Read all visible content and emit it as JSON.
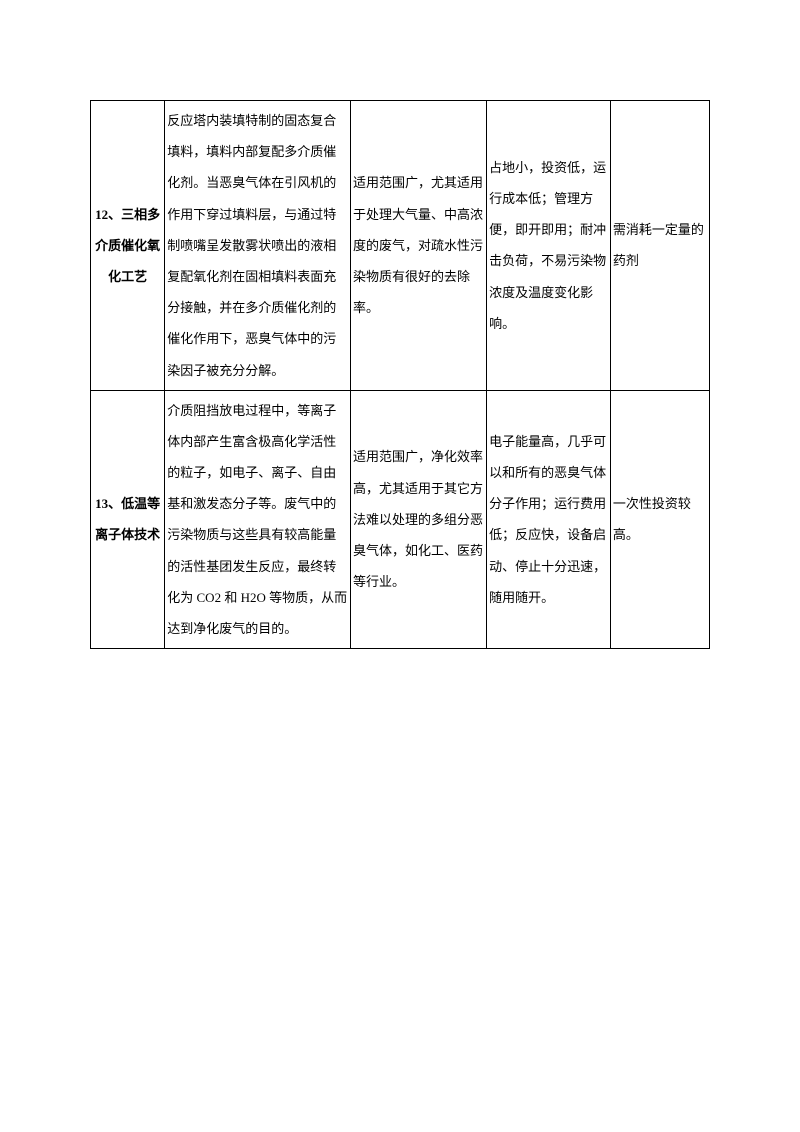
{
  "table": {
    "rows": [
      {
        "name": "12、三相多介质催化氧化工艺",
        "principle": "反应塔内装填特制的固态复合填料，填料内部复配多介质催化剂。当恶臭气体在引风机的作用下穿过填料层，与通过特制喷嘴呈发散雾状喷出的液相复配氧化剂在固相填料表面充分接触，并在多介质催化剂的催化作用下，恶臭气体中的污染因子被充分分解。",
        "scope": "适用范围广，尤其适用于处理大气量、中高浓度的废气，对疏水性污染物质有很好的去除率。",
        "advantage": "占地小，投资低，运行成本低；管理方便，即开即用；耐冲击负荷，不易污染物浓度及温度变化影响。",
        "disadvantage": "需消耗一定量的药剂"
      },
      {
        "name": "13、低温等离子体技术",
        "principle": "介质阻挡放电过程中，等离子体内部产生富含极高化学活性的粒子，如电子、离子、自由基和激发态分子等。废气中的污染物质与这些具有较高能量的活性基团发生反应，最终转化为 CO2 和 H2O 等物质，从而达到净化废气的目的。",
        "scope": "适用范围广，净化效率高，尤其适用于其它方法难以处理的多组分恶臭气体，如化工、医药等行业。",
        "advantage": "电子能量高，几乎可以和所有的恶臭气体分子作用；运行费用低；反应快，设备启动、停止十分迅速，随用随开。",
        "disadvantage": "一次性投资较高。"
      }
    ]
  }
}
